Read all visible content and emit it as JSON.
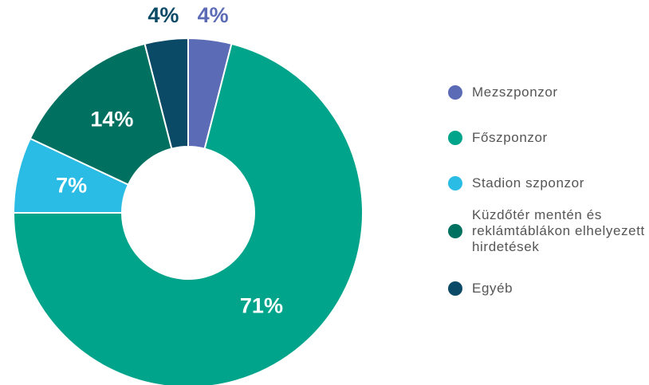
{
  "chart_data": {
    "type": "donut",
    "categories": [
      "Mezszponzor",
      "Főszponzor",
      "Stadion szponzor",
      "Küzdőtér mentén és reklámtáblákon elhelyezett hirdetések",
      "Egyéb"
    ],
    "values": [
      4,
      71,
      7,
      14,
      4
    ],
    "value_labels": [
      "4%",
      "71%",
      "7%",
      "14%",
      "4%"
    ],
    "colors": [
      "#5b6bb5",
      "#00a48a",
      "#2bbce5",
      "#007060",
      "#0b4a66"
    ],
    "legend": "right"
  }
}
